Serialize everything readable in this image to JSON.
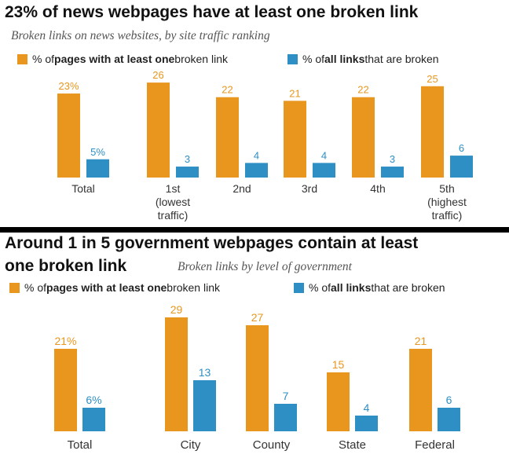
{
  "colors": {
    "orange": "#E8961E",
    "blue": "#2E8FC4",
    "label": "#333333",
    "divider": "#000000"
  },
  "chart_data": [
    {
      "type": "bar",
      "title": "23% of news webpages have at least one broken link",
      "subtitle": "Broken links on news websites, by site traffic ranking",
      "legend": [
        {
          "pre": "% of ",
          "bold": "pages with at least one",
          "post": " broken link"
        },
        {
          "pre": "% of ",
          "bold": "all links",
          "post": " that are broken"
        }
      ],
      "categories": [
        [
          "Total"
        ],
        [
          "1st",
          "(lowest",
          "traffic)"
        ],
        [
          "2nd"
        ],
        [
          "3rd"
        ],
        [
          "4th"
        ],
        [
          "5th",
          "(highest",
          "traffic)"
        ]
      ],
      "series": [
        {
          "name": "% of pages with at least one broken link",
          "values": [
            23,
            26,
            22,
            21,
            22,
            25
          ],
          "labels": [
            "23%",
            "26",
            "22",
            "21",
            "22",
            "25"
          ]
        },
        {
          "name": "% of all links that are broken",
          "values": [
            5,
            3,
            4,
            4,
            3,
            6
          ],
          "labels": [
            "5%",
            "3",
            "4",
            "4",
            "3",
            "6"
          ]
        }
      ]
    },
    {
      "type": "bar",
      "title_lines": [
        "Around 1 in 5 government webpages contain at least",
        "one broken link"
      ],
      "subtitle": "Broken links by level of government",
      "legend": [
        {
          "pre": "% of ",
          "bold": "pages with at least one",
          "post": " broken link"
        },
        {
          "pre": "% of ",
          "bold": "all links",
          "post": " that are broken"
        }
      ],
      "categories": [
        [
          "Total"
        ],
        [
          "City"
        ],
        [
          "County"
        ],
        [
          "State"
        ],
        [
          "Federal"
        ]
      ],
      "series": [
        {
          "name": "% of pages with at least one broken link",
          "values": [
            21,
            29,
            27,
            15,
            21
          ],
          "labels": [
            "21%",
            "29",
            "27",
            "15",
            "21"
          ]
        },
        {
          "name": "% of all links that are broken",
          "values": [
            6,
            13,
            7,
            4,
            6
          ],
          "labels": [
            "6%",
            "13",
            "7",
            "4",
            "6"
          ]
        }
      ]
    }
  ]
}
